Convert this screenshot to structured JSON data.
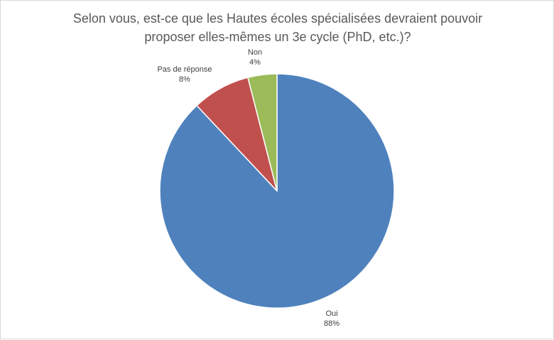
{
  "chart_data": {
    "type": "pie",
    "title_lines": [
      "Selon vous, est-ce que les Hautes écoles spécialisées devraient pouvoir",
      "proposer elles-mêmes un 3e cycle (PhD, etc.)?"
    ],
    "slices": [
      {
        "label": "Oui",
        "value": 88,
        "value_label": "88%",
        "color": "#4f81bd"
      },
      {
        "label": "Pas de réponse",
        "value": 8,
        "value_label": "8%",
        "color": "#c0504d"
      },
      {
        "label": "Non",
        "value": 4,
        "value_label": "4%",
        "color": "#9bbb59"
      }
    ],
    "legend": "none",
    "data_labels": "outside"
  }
}
